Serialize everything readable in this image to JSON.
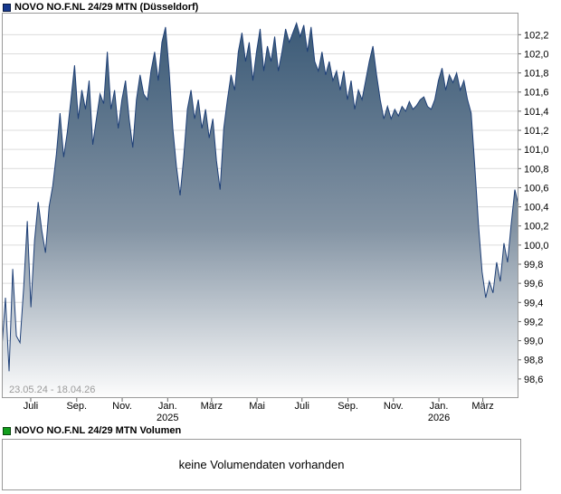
{
  "header": {
    "title": "NOVO NO.F.NL 24/29 MTN (Düsseldorf)",
    "marker_color": "#16388e"
  },
  "chart": {
    "date_range": "23.05.24 - 18.04.26"
  },
  "volume": {
    "title": "NOVO NO.F.NL 24/29 MTN Volumen",
    "marker_color": "#129e1d",
    "empty_message": "keine Volumendaten vorhanden"
  },
  "chart_data": {
    "type": "area",
    "title": "NOVO NO.F.NL 24/29 MTN (Düsseldorf)",
    "x_start": "23.05.24",
    "x_end": "18.04.26",
    "ylim": [
      98.4,
      102.43
    ],
    "grid": true,
    "legend": "none",
    "line_color": "#1f4077",
    "border_color": "#999999",
    "grid_color": "#dcdcdc",
    "tick_color": "#666666",
    "fill_gradient": [
      {
        "offset": "0%",
        "color": "#3b5a77"
      },
      {
        "offset": "55%",
        "color": "#8494a4"
      },
      {
        "offset": "100%",
        "color": "#fdfdfd"
      }
    ],
    "yticks": [
      98.6,
      98.8,
      99.0,
      99.2,
      99.4,
      99.6,
      99.8,
      100.0,
      100.2,
      100.4,
      100.6,
      100.8,
      101.0,
      101.2,
      101.4,
      101.6,
      101.8,
      102.0,
      102.2
    ],
    "ytick_labels": [
      "98,6",
      "98,8",
      "99,0",
      "99,2",
      "99,4",
      "99,6",
      "99,8",
      "100,0",
      "100,2",
      "100,4",
      "100,6",
      "100,8",
      "101,0",
      "101,2",
      "101,4",
      "101,6",
      "101,8",
      "102,0",
      "102,2"
    ],
    "xticks": [
      {
        "pos": 0.056,
        "label": "Juli"
      },
      {
        "pos": 0.145,
        "label": "Sep."
      },
      {
        "pos": 0.233,
        "label": "Nov."
      },
      {
        "pos": 0.321,
        "label": "Jan.",
        "year": "2025"
      },
      {
        "pos": 0.406,
        "label": "März"
      },
      {
        "pos": 0.494,
        "label": "Mai"
      },
      {
        "pos": 0.581,
        "label": "Juli"
      },
      {
        "pos": 0.67,
        "label": "Sep."
      },
      {
        "pos": 0.758,
        "label": "Nov."
      },
      {
        "pos": 0.846,
        "label": "Jan.",
        "year": "2026"
      },
      {
        "pos": 0.931,
        "label": "März"
      }
    ],
    "values": [
      98.92,
      99.45,
      98.68,
      99.75,
      99.05,
      98.98,
      99.55,
      100.25,
      99.35,
      100.05,
      100.45,
      100.15,
      99.92,
      100.4,
      100.62,
      100.95,
      101.38,
      100.92,
      101.18,
      101.52,
      101.88,
      101.32,
      101.62,
      101.42,
      101.72,
      101.05,
      101.32,
      101.58,
      101.48,
      102.02,
      101.42,
      101.62,
      101.22,
      101.52,
      101.72,
      101.32,
      101.02,
      101.52,
      101.78,
      101.58,
      101.52,
      101.82,
      102.02,
      101.72,
      102.12,
      102.28,
      101.82,
      101.22,
      100.82,
      100.52,
      100.92,
      101.42,
      101.62,
      101.32,
      101.52,
      101.22,
      101.42,
      101.12,
      101.32,
      100.88,
      100.58,
      101.22,
      101.52,
      101.78,
      101.62,
      102.02,
      102.22,
      101.92,
      102.12,
      101.72,
      102.02,
      102.26,
      101.82,
      102.08,
      101.92,
      102.18,
      101.82,
      102.02,
      102.26,
      102.12,
      102.22,
      102.32,
      102.18,
      102.3,
      102.02,
      102.28,
      101.92,
      101.82,
      102.02,
      101.78,
      101.92,
      101.72,
      101.82,
      101.62,
      101.82,
      101.52,
      101.72,
      101.42,
      101.62,
      101.52,
      101.72,
      101.92,
      102.08,
      101.78,
      101.52,
      101.32,
      101.45,
      101.32,
      101.42,
      101.35,
      101.45,
      101.4,
      101.5,
      101.42,
      101.46,
      101.52,
      101.55,
      101.45,
      101.42,
      101.52,
      101.72,
      101.85,
      101.62,
      101.78,
      101.7,
      101.8,
      101.62,
      101.72,
      101.52,
      101.38,
      100.82,
      100.22,
      99.72,
      99.45,
      99.62,
      99.5,
      99.82,
      99.62,
      100.02,
      99.82,
      100.22,
      100.58,
      100.42
    ]
  }
}
